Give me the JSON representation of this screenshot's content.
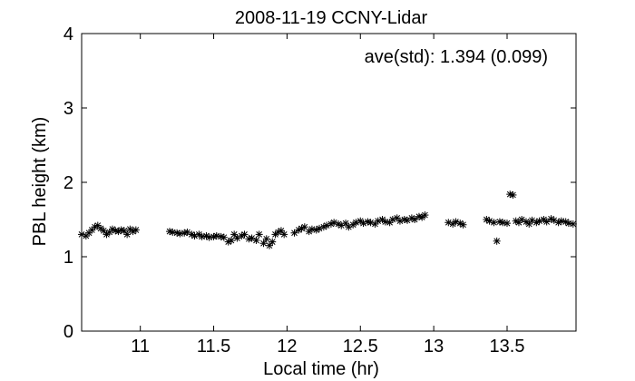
{
  "chart_data": {
    "type": "scatter",
    "title": "2008-11-19 CCNY-Lidar",
    "xlabel": "Local time (hr)",
    "ylabel": "PBL height (km)",
    "annotation": "ave(std): 1.394 (0.099)",
    "xlim": [
      10.6,
      13.97
    ],
    "ylim": [
      0,
      4
    ],
    "xticks": [
      11,
      11.5,
      12,
      12.5,
      13,
      13.5
    ],
    "xtick_labels": [
      "11",
      "11.5",
      "12",
      "12.5",
      "13",
      "13.5"
    ],
    "yticks": [
      0,
      1,
      2,
      3,
      4
    ],
    "ytick_labels": [
      "0",
      "1",
      "2",
      "3",
      "4"
    ],
    "marker": "*",
    "marker_color": "#000000",
    "grid": false,
    "series": [
      {
        "x": [
          10.6,
          10.63,
          10.65,
          10.67,
          10.69,
          10.71,
          10.73,
          10.75,
          10.77,
          10.79,
          10.81,
          10.83,
          10.85,
          10.87,
          10.89,
          10.91,
          10.93,
          10.95,
          10.97,
          11.2,
          11.22,
          11.25,
          11.27,
          11.3,
          11.32,
          11.35,
          11.37,
          11.4,
          11.42,
          11.45,
          11.47,
          11.5,
          11.52,
          11.55,
          11.57,
          11.6,
          11.62,
          11.64,
          11.66,
          11.69,
          11.71,
          11.74,
          11.76,
          11.79,
          11.81,
          11.84,
          11.86,
          11.88,
          11.9,
          11.92,
          11.94,
          11.96,
          11.98,
          12.05,
          12.08,
          12.1,
          12.12,
          12.15,
          12.17,
          12.2,
          12.22,
          12.25,
          12.27,
          12.3,
          12.32,
          12.35,
          12.37,
          12.4,
          12.42,
          12.45,
          12.47,
          12.5,
          12.52,
          12.55,
          12.57,
          12.6,
          12.62,
          12.65,
          12.67,
          12.7,
          12.72,
          12.75,
          12.77,
          12.8,
          12.82,
          12.85,
          12.87,
          12.9,
          12.92,
          12.94,
          13.1,
          13.13,
          13.15,
          13.18,
          13.2,
          13.36,
          13.38,
          13.41,
          13.43,
          13.45,
          13.47,
          13.5,
          13.52,
          13.54,
          13.56,
          13.58,
          13.6,
          13.63,
          13.65,
          13.67,
          13.7,
          13.72,
          13.75,
          13.77,
          13.8,
          13.82,
          13.85,
          13.87,
          13.9,
          13.92,
          13.95
        ],
        "y": [
          1.3,
          1.28,
          1.32,
          1.36,
          1.4,
          1.42,
          1.38,
          1.35,
          1.3,
          1.33,
          1.37,
          1.35,
          1.34,
          1.36,
          1.35,
          1.3,
          1.37,
          1.34,
          1.36,
          1.34,
          1.33,
          1.32,
          1.31,
          1.32,
          1.33,
          1.3,
          1.28,
          1.3,
          1.27,
          1.28,
          1.26,
          1.27,
          1.28,
          1.27,
          1.26,
          1.2,
          1.22,
          1.3,
          1.25,
          1.28,
          1.3,
          1.24,
          1.25,
          1.22,
          1.3,
          1.18,
          1.24,
          1.15,
          1.2,
          1.3,
          1.33,
          1.35,
          1.3,
          1.32,
          1.36,
          1.38,
          1.4,
          1.34,
          1.37,
          1.36,
          1.38,
          1.4,
          1.42,
          1.44,
          1.46,
          1.44,
          1.42,
          1.45,
          1.4,
          1.43,
          1.46,
          1.48,
          1.45,
          1.47,
          1.46,
          1.44,
          1.48,
          1.5,
          1.47,
          1.46,
          1.5,
          1.52,
          1.48,
          1.5,
          1.49,
          1.52,
          1.5,
          1.54,
          1.53,
          1.56,
          1.46,
          1.44,
          1.47,
          1.45,
          1.43,
          1.5,
          1.48,
          1.46,
          1.21,
          1.47,
          1.46,
          1.45,
          1.84,
          1.83,
          1.48,
          1.46,
          1.5,
          1.47,
          1.44,
          1.49,
          1.46,
          1.48,
          1.5,
          1.47,
          1.51,
          1.49,
          1.46,
          1.48,
          1.47,
          1.45,
          1.44
        ]
      }
    ]
  }
}
